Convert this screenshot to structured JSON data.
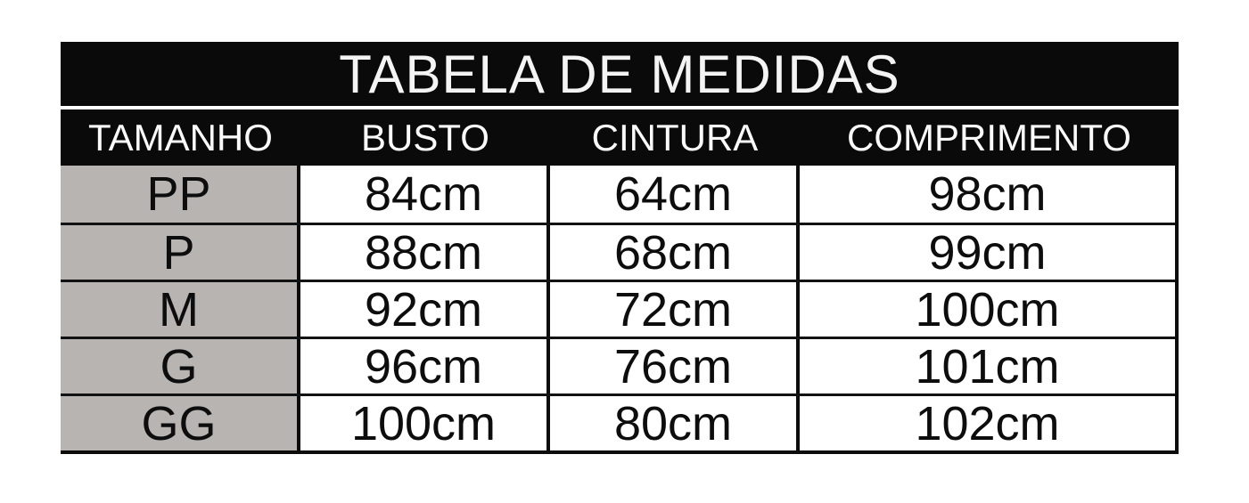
{
  "table": {
    "title": "TABELA DE MEDIDAS",
    "columns": [
      "TAMANHO",
      "BUSTO",
      "CINTURA",
      "COMPRIMENTO"
    ],
    "rows": [
      {
        "cells": [
          "PP",
          "84cm",
          "64cm",
          "98cm"
        ]
      },
      {
        "cells": [
          "P",
          "88cm",
          "68cm",
          "99cm"
        ]
      },
      {
        "cells": [
          "M",
          "92cm",
          "72cm",
          "100cm"
        ]
      },
      {
        "cells": [
          "G",
          "96cm",
          "76cm",
          "101cm"
        ]
      },
      {
        "cells": [
          "GG",
          "100cm",
          "80cm",
          "102cm"
        ]
      }
    ],
    "colors": {
      "header_bg": "#0a0a0a",
      "header_text": "#ffffff",
      "size_column_bg": "#b7b4b2",
      "value_cell_bg": "#ffffff",
      "border": "#0c0c0c",
      "cell_text": "#0d0d0d",
      "page_bg": "#ffffff"
    }
  },
  "chart_data": {
    "type": "table",
    "title": "TABELA DE MEDIDAS",
    "columns": [
      "TAMANHO",
      "BUSTO",
      "CINTURA",
      "COMPRIMENTO"
    ],
    "rows": [
      [
        "PP",
        "84cm",
        "64cm",
        "98cm"
      ],
      [
        "P",
        "88cm",
        "68cm",
        "99cm"
      ],
      [
        "M",
        "92cm",
        "72cm",
        "100cm"
      ],
      [
        "G",
        "96cm",
        "76cm",
        "101cm"
      ],
      [
        "GG",
        "100cm",
        "80cm",
        "102cm"
      ]
    ],
    "units": "cm",
    "notes_layout": "black title bar and header row; size column shaded gray; values centered"
  }
}
